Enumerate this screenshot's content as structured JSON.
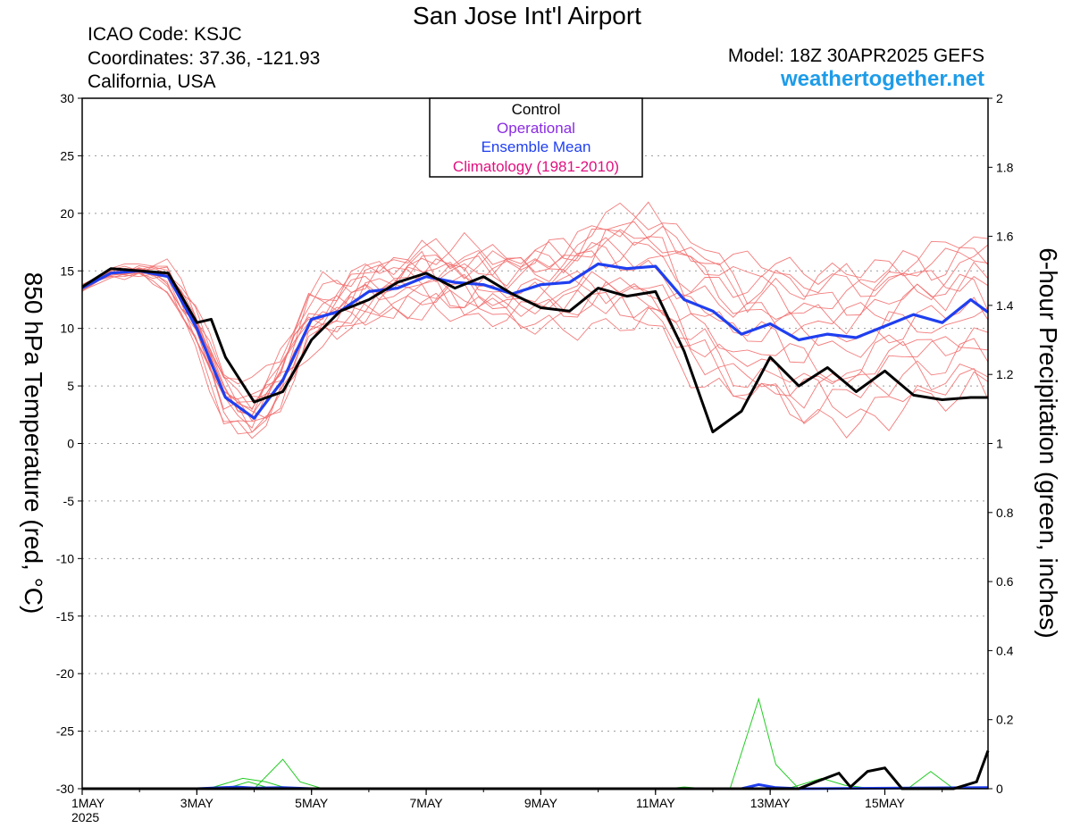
{
  "header": {
    "title": "San Jose Int'l Airport",
    "icao": "ICAO Code: KSJC",
    "coordinates": "Coordinates: 37.36, -121.93",
    "region": "California, USA",
    "model": "Model: 18Z 30APR2025 GEFS",
    "site": "weathertogether.net"
  },
  "colors": {
    "members": "#f26d6d",
    "control": "#000000",
    "operational": "#8a2be2",
    "mean": "#1f3ff0",
    "climatology": "#e0117f",
    "precip_members": "#22cc22",
    "site": "#1e9ce8"
  },
  "chart_data": {
    "type": "line",
    "title": "San Jose Int'l Airport",
    "ylabel": "850 hPa Temperature (red, °C)",
    "y2label": "6-hour Precipitation (green, inches)",
    "ylim": [
      -30,
      30
    ],
    "y2lim": [
      0,
      2
    ],
    "yticks": [
      30,
      25,
      20,
      15,
      10,
      5,
      0,
      -5,
      -10,
      -15,
      -20,
      -25,
      -30
    ],
    "y2ticks": [
      "2",
      "1.8",
      "1.6",
      "1.4",
      "1.2",
      "1",
      "0.8",
      "0.6",
      "0.4",
      "0.2",
      "0"
    ],
    "grid": true,
    "x_unit": "day of May 2025",
    "xlim": [
      1,
      16.8
    ],
    "xticks": [
      {
        "day": 1,
        "label": "1MAY",
        "sublabel": "2025"
      },
      {
        "day": 3,
        "label": "3MAY"
      },
      {
        "day": 5,
        "label": "5MAY"
      },
      {
        "day": 7,
        "label": "7MAY"
      },
      {
        "day": 9,
        "label": "9MAY"
      },
      {
        "day": 11,
        "label": "11MAY"
      },
      {
        "day": 13,
        "label": "13MAY"
      },
      {
        "day": 15,
        "label": "15MAY"
      }
    ],
    "legend": {
      "placement": "top-center",
      "entries": [
        {
          "label": "Control",
          "color": "#000000"
        },
        {
          "label": "Operational",
          "color": "#8a2be2"
        },
        {
          "label": "Ensemble Mean",
          "color": "#1f3ff0"
        },
        {
          "label": "Climatology (1981-2010)",
          "color": "#e0117f"
        }
      ]
    },
    "control_temp": {
      "x": [
        1,
        1.5,
        2,
        2.5,
        3,
        3.25,
        3.5,
        4,
        4.5,
        5,
        5.5,
        6,
        6.5,
        7,
        7.5,
        8,
        8.5,
        9,
        9.5,
        10,
        10.5,
        11,
        11.5,
        12,
        12.5,
        13,
        13.5,
        14,
        14.5,
        15,
        15.5,
        16,
        16.5,
        16.8
      ],
      "y": [
        13.6,
        15.2,
        15.0,
        14.8,
        10.5,
        10.8,
        7.5,
        3.6,
        4.5,
        9.0,
        11.5,
        12.5,
        14.0,
        14.8,
        13.5,
        14.5,
        13.0,
        11.8,
        11.5,
        13.5,
        12.8,
        13.2,
        8.0,
        1.0,
        2.8,
        7.5,
        5.0,
        6.6,
        4.5,
        6.3,
        4.2,
        3.8,
        4.0,
        4.0
      ]
    },
    "mean_temp": {
      "x": [
        1,
        1.5,
        2,
        2.5,
        3,
        3.5,
        4,
        4.5,
        5,
        5.5,
        6,
        6.5,
        7,
        7.5,
        8,
        8.5,
        9,
        9.5,
        10,
        10.5,
        11,
        11.5,
        12,
        12.5,
        13,
        13.5,
        14,
        14.5,
        15,
        15.5,
        16,
        16.5,
        16.8
      ],
      "y": [
        13.5,
        14.8,
        15.0,
        14.5,
        10.0,
        4.0,
        2.2,
        5.5,
        10.8,
        11.5,
        13.2,
        13.5,
        14.5,
        14.0,
        13.8,
        13.0,
        13.8,
        14.0,
        15.6,
        15.2,
        15.4,
        12.5,
        11.5,
        9.5,
        10.4,
        9.0,
        9.5,
        9.2,
        10.2,
        11.2,
        10.5,
        12.5,
        11.4
      ]
    },
    "member_temp_offsets": [
      [
        0.2,
        0.2,
        -0.5,
        0.5,
        1.5,
        2.0,
        1.0,
        0.5,
        0.8,
        2.5,
        1.5,
        2.0,
        3.5,
        4.5,
        2.5,
        4.0,
        6.0,
        5.0,
        3.0,
        1.5
      ],
      [
        -0.2,
        -0.4,
        0.3,
        -0.5,
        -1.0,
        -2.5,
        -1.5,
        0.5,
        -2.0,
        -1.0,
        -2.5,
        -3.0,
        -4.5,
        -3.5,
        -6.0,
        -4.5,
        -3.0,
        -5.5,
        -4.0,
        -3.5
      ],
      [
        0.1,
        0.3,
        0.6,
        1.2,
        0.5,
        -0.5,
        1.5,
        2.5,
        1.8,
        1.2,
        2.5,
        4.0,
        2.5,
        3.5,
        5.0,
        6.0,
        4.5,
        3.0,
        5.5,
        4.0
      ],
      [
        0.0,
        -0.3,
        -1.2,
        -2.0,
        -0.5,
        1.0,
        -1.0,
        -2.0,
        -0.5,
        -3.0,
        -3.5,
        -2.0,
        -5.0,
        -7.0,
        -5.0,
        -6.5,
        -8.0,
        -6.0,
        -7.5,
        -6.5
      ],
      [
        0.3,
        0.5,
        1.5,
        0.8,
        2.0,
        2.5,
        1.0,
        3.0,
        2.0,
        3.5,
        1.5,
        3.0,
        5.0,
        3.0,
        1.0,
        2.0,
        3.5,
        5.5,
        4.0,
        5.0
      ],
      [
        -0.3,
        0.1,
        -0.8,
        -1.5,
        -2.0,
        -1.0,
        -2.5,
        -1.0,
        -3.5,
        -2.0,
        -1.0,
        -3.5,
        -2.5,
        -5.0,
        -3.5,
        -7.0,
        -5.0,
        -3.5,
        -2.0,
        -4.0
      ],
      [
        0.2,
        -0.2,
        0.8,
        1.8,
        1.2,
        0.5,
        2.5,
        1.5,
        0.5,
        2.0,
        3.5,
        1.5,
        0.5,
        2.0,
        4.0,
        2.5,
        1.0,
        2.5,
        1.5,
        3.0
      ],
      [
        -0.1,
        0.4,
        -0.3,
        -1.0,
        0.5,
        -1.5,
        -0.5,
        -2.5,
        -1.5,
        0.5,
        -1.5,
        -1.0,
        -3.0,
        -1.5,
        -2.5,
        -1.0,
        -4.5,
        -2.0,
        -6.0,
        -5.0
      ],
      [
        0.1,
        -0.5,
        1.0,
        2.2,
        3.0,
        1.5,
        0.0,
        1.0,
        3.5,
        2.5,
        0.5,
        5.0,
        4.0,
        6.0,
        3.0,
        5.0,
        2.0,
        4.0,
        6.5,
        5.5
      ],
      [
        0.0,
        0.2,
        -1.5,
        -2.5,
        -1.0,
        0.5,
        -2.0,
        -3.0,
        -1.0,
        -2.0,
        -4.0,
        -5.5,
        -4.0,
        -2.5,
        -5.0,
        -3.0,
        -6.5,
        -8.5,
        -5.5,
        -7.0
      ],
      [
        -0.2,
        0.3,
        0.4,
        0.0,
        1.0,
        3.0,
        2.0,
        1.0,
        2.5,
        1.0,
        2.0,
        0.5,
        2.0,
        4.5,
        6.5,
        4.0,
        5.5,
        3.5,
        2.0,
        6.0
      ],
      [
        0.3,
        -0.1,
        -0.6,
        1.0,
        -1.5,
        -0.5,
        0.5,
        -1.5,
        0.0,
        -1.5,
        0.5,
        -2.0,
        -1.0,
        -4.0,
        -2.0,
        -5.5,
        -3.5,
        -1.0,
        -3.0,
        -2.5
      ],
      [
        0.0,
        0.1,
        0.2,
        -0.3,
        0.8,
        1.2,
        -0.8,
        0.8,
        1.2,
        3.0,
        2.8,
        1.0,
        -0.5,
        1.0,
        2.0,
        0.0,
        2.5,
        1.0,
        3.0,
        1.0
      ],
      [
        0.1,
        -0.2,
        -0.4,
        0.6,
        -0.3,
        -1.8,
        0.3,
        2.0,
        -2.5,
        -0.5,
        1.0,
        -2.5,
        -2.0,
        0.5,
        -1.0,
        1.5,
        -2.0,
        0.5,
        -1.5,
        0.0
      ],
      [
        -0.1,
        0.0,
        0.9,
        -0.8,
        1.8,
        0.0,
        3.0,
        0.0,
        1.0,
        -1.0,
        -2.0,
        2.5,
        3.0,
        -1.0,
        0.5,
        -2.0,
        0.5,
        -1.5,
        1.0,
        -1.0
      ]
    ],
    "precip_mean": {
      "x": [
        1,
        3,
        3.7,
        4,
        4.5,
        5,
        12.5,
        12.8,
        13.1,
        13.5,
        16.8
      ],
      "y": [
        0,
        0,
        0.005,
        0.002,
        0.003,
        0,
        0,
        0.012,
        0.003,
        0,
        0.003
      ]
    },
    "precip_control": {
      "x": [
        1,
        13.5,
        13.8,
        14.2,
        14.4,
        14.7,
        15.0,
        15.3,
        16.2,
        16.6,
        16.8
      ],
      "y": [
        0,
        0,
        0.02,
        0.045,
        0.005,
        0.05,
        0.06,
        0,
        0,
        0.02,
        0.11
      ]
    },
    "precip_members": [
      {
        "x": [
          1,
          3.2,
          3.8,
          4.2,
          4.6,
          5.0,
          16.8
        ],
        "y": [
          0,
          0,
          0.03,
          0.02,
          0,
          0,
          0
        ]
      },
      {
        "x": [
          1,
          4.0,
          4.5,
          4.8,
          5.2,
          16.8
        ],
        "y": [
          0,
          0,
          0.085,
          0.02,
          0,
          0
        ]
      },
      {
        "x": [
          1,
          3.5,
          3.9,
          4.3,
          16.8
        ],
        "y": [
          0,
          0,
          0.02,
          0,
          0
        ]
      },
      {
        "x": [
          1,
          12.3,
          12.8,
          13.1,
          13.5,
          16.8
        ],
        "y": [
          0,
          0,
          0.26,
          0.07,
          0,
          0
        ]
      },
      {
        "x": [
          1,
          13.3,
          13.9,
          14.3,
          14.8,
          16.8
        ],
        "y": [
          0,
          0,
          0.03,
          0.01,
          0,
          0
        ]
      },
      {
        "x": [
          1,
          15.4,
          15.8,
          16.2,
          16.8
        ],
        "y": [
          0,
          0,
          0.05,
          0,
          0
        ]
      },
      {
        "x": [
          1,
          11.2,
          11.5,
          11.9,
          16.8
        ],
        "y": [
          0,
          0,
          0.005,
          0,
          0
        ]
      }
    ]
  }
}
